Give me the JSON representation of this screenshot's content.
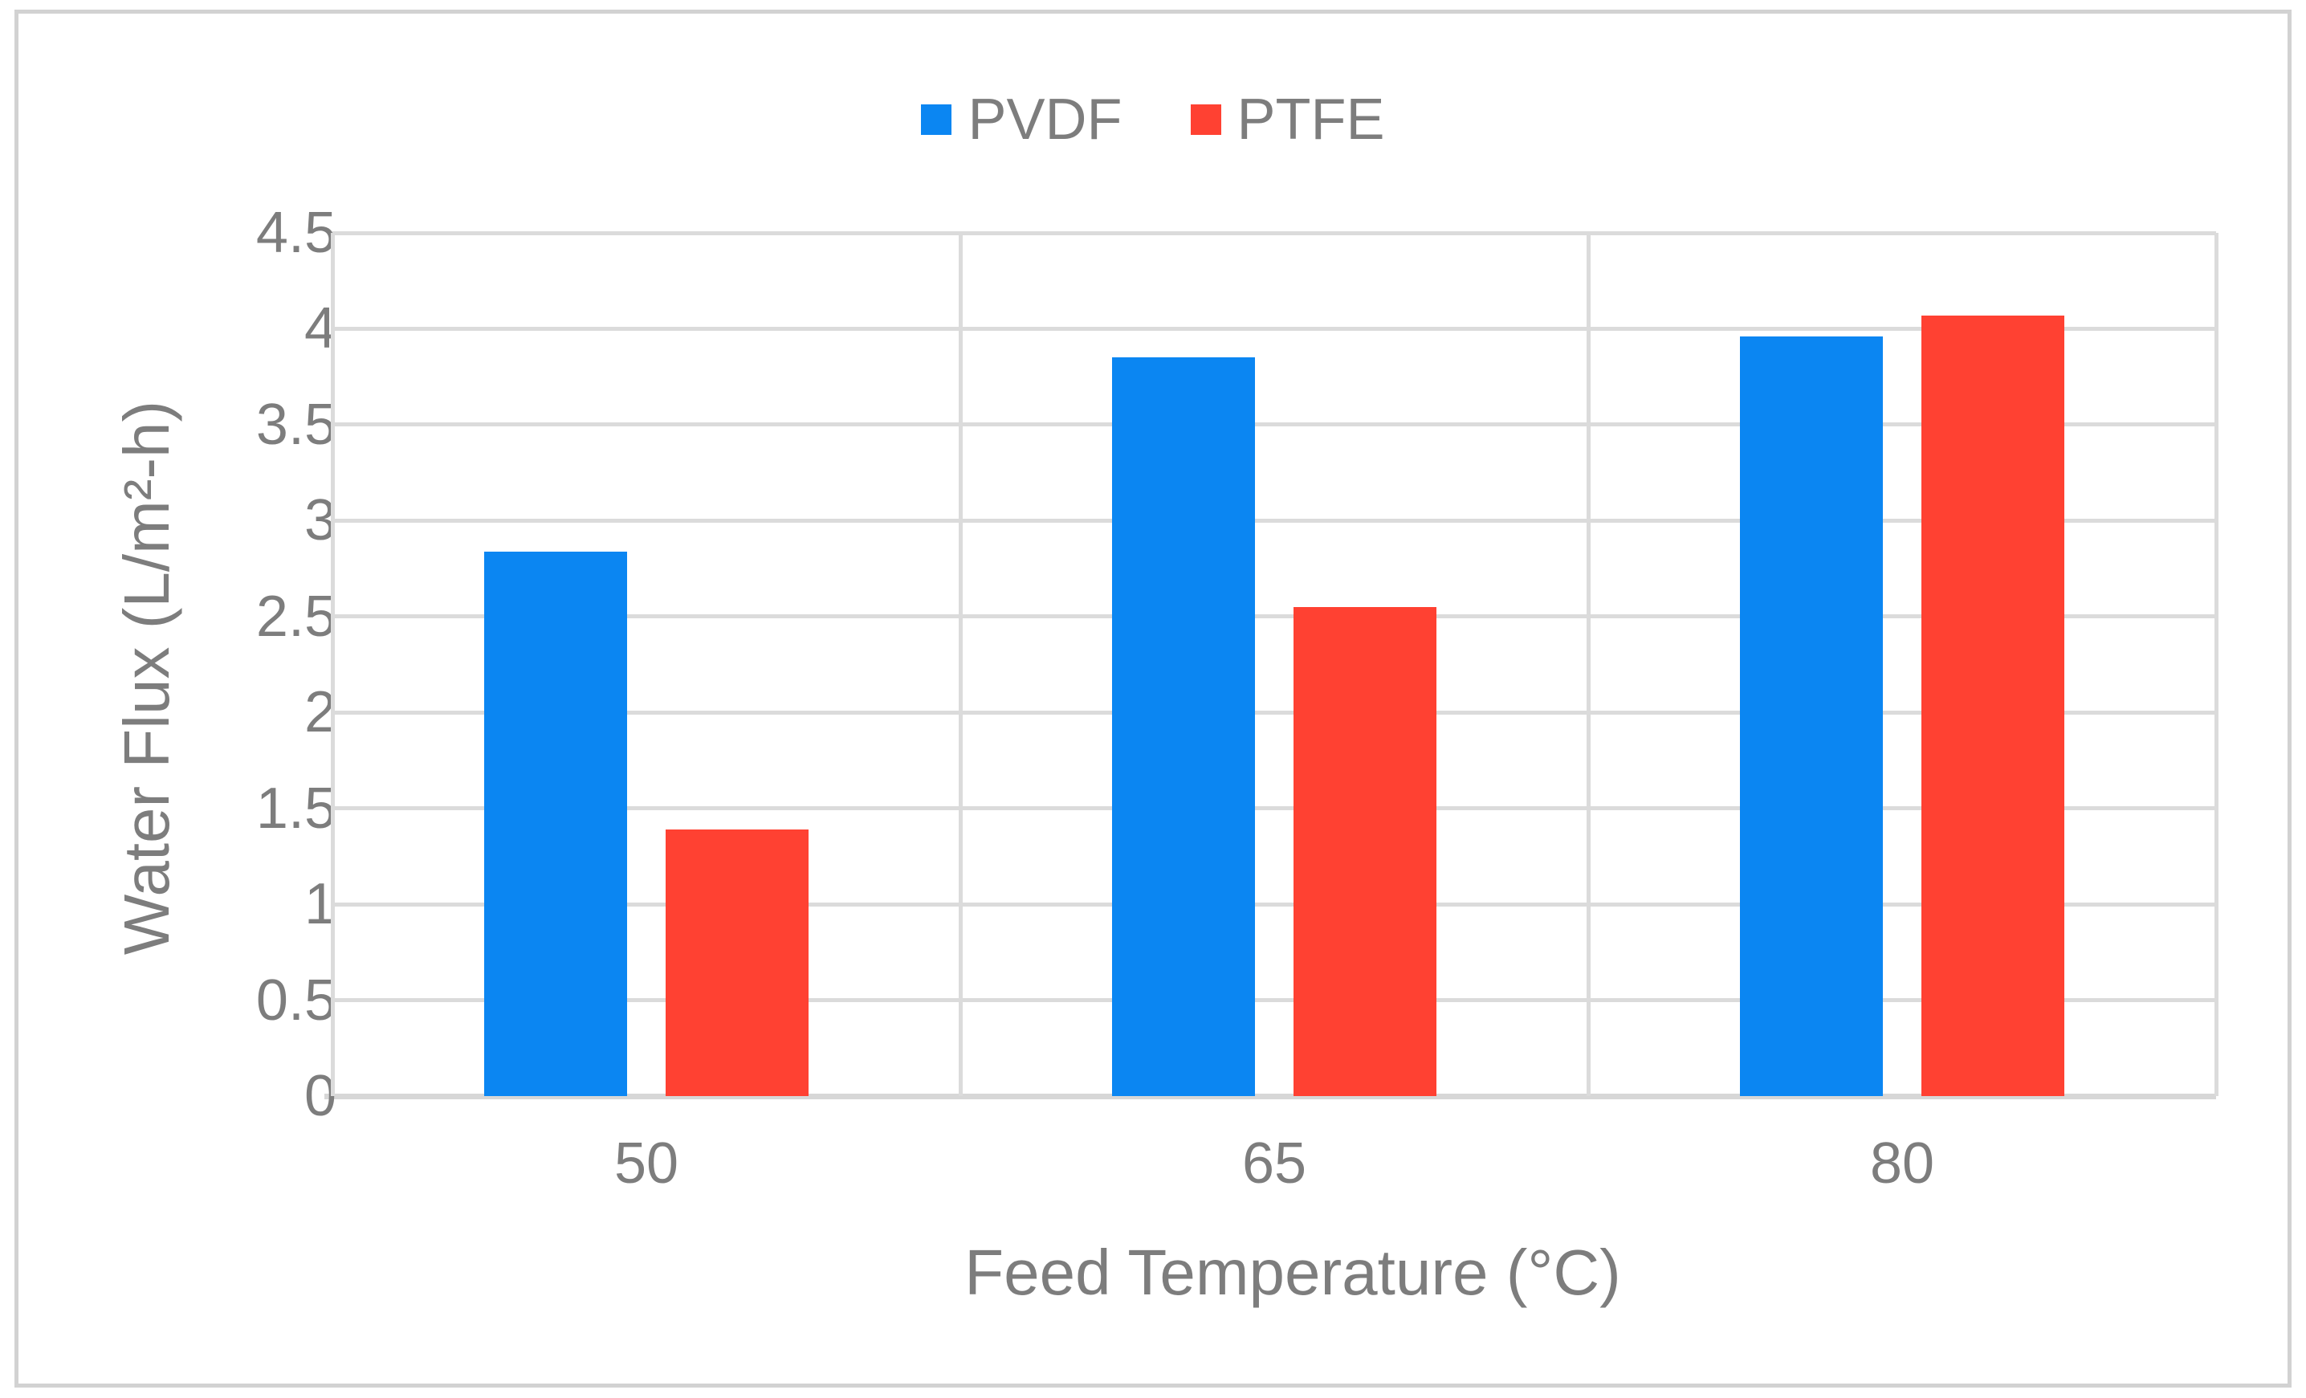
{
  "chart_data": {
    "type": "bar",
    "title": "",
    "categories": [
      "50",
      "65",
      "80"
    ],
    "series": [
      {
        "name": "PVDF",
        "color": "#0b86f2",
        "values": [
          2.84,
          3.85,
          3.96
        ]
      },
      {
        "name": "PTFE",
        "color": "#ff4132",
        "values": [
          1.39,
          2.55,
          4.07
        ]
      }
    ],
    "xlabel": "Feed Temperature (°C)",
    "ylabel": "Water Flux (L/m²-h)",
    "ylim": [
      0,
      4.5
    ],
    "ytick_step": 0.5,
    "y_ticks": [
      "4.5",
      "4",
      "3.5",
      "3",
      "2.5",
      "2",
      "1.5",
      "1",
      "0.5",
      "0"
    ],
    "grid": true,
    "legend_position": "top-center"
  },
  "colors": {
    "gridline": "#dbdbdb",
    "axis_line": "#d7d7d7",
    "text": "#7d7d7d",
    "frame_border": "#d2d2d2",
    "background": "#ffffff"
  }
}
